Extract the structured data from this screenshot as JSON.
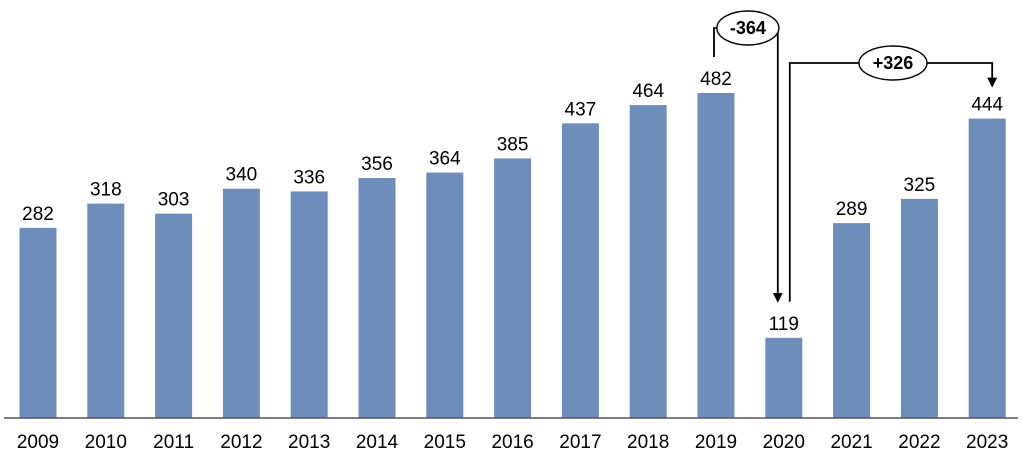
{
  "chart_data": {
    "type": "bar",
    "title": "",
    "xlabel": "",
    "ylabel": "",
    "categories": [
      "2009",
      "2010",
      "2011",
      "2012",
      "2013",
      "2014",
      "2015",
      "2016",
      "2017",
      "2018",
      "2019",
      "2020",
      "2021",
      "2022",
      "2023"
    ],
    "values": [
      282,
      318,
      303,
      340,
      336,
      356,
      364,
      385,
      437,
      464,
      482,
      119,
      289,
      325,
      444
    ],
    "ylim": [
      0,
      530
    ],
    "grid": false,
    "legend": "none",
    "bar_color": "#6d8ebb",
    "annotations": [
      {
        "label": "-364",
        "from": "2019",
        "to": "2020"
      },
      {
        "label": "+326",
        "from": "2020",
        "to": "2023"
      }
    ]
  }
}
